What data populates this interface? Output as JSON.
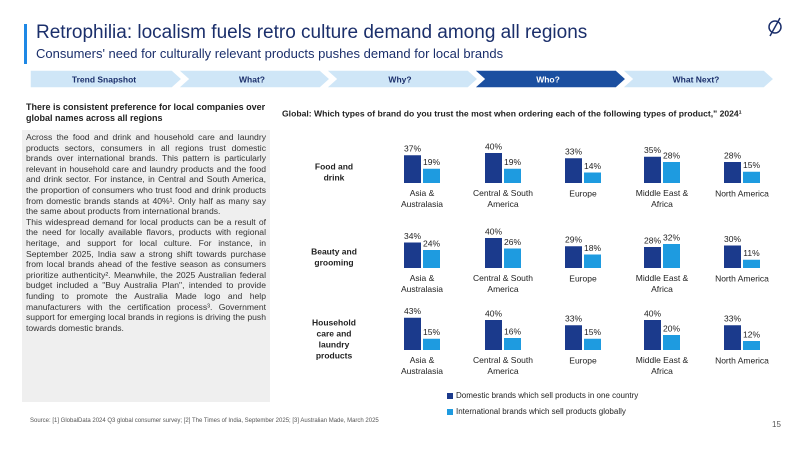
{
  "header": {
    "title": "Retrophilia: localism fuels retro culture demand among all regions",
    "subtitle": "Consumers' need for culturally relevant products pushes demand for local brands"
  },
  "nav": {
    "items": [
      "Trend Snapshot",
      "What?",
      "Why?",
      "Who?",
      "What Next?"
    ],
    "active": 3
  },
  "panel": {
    "heading": "There is consistent preference for local companies over global names across all regions",
    "paragraphs": [
      "Across the food and drink and household care and laundry products sectors, consumers in all regions trust domestic brands over international brands. This pattern is particularly relevant in household care and laundry products and the food and drink sector. For instance, in Central and South America, the proportion of consumers who trust food and drink products from domestic brands stands at 40%¹. Only half as many say the same about products from international brands.",
      "This widespread demand for local products can be a result of the need for locally available flavors, products with regional heritage, and support for local culture. For instance, in September 2025, India saw a strong shift towards purchase from local brands ahead of the festive season as consumers prioritize authenticity². Meanwhile, the 2025 Australian federal budget included a \"Buy Australia Plan\", intended to provide funding to promote the Australia Made logo and help manufacturers with the certification process³. Government support for emerging local brands in regions is driving the push towards domestic brands."
    ]
  },
  "chart_data": {
    "type": "bar",
    "title": "Global: Which types of brand do you trust the most when ordering each of the following types of product,\" 2024¹",
    "groups": [
      "Food and drink",
      "Beauty and grooming",
      "Household care and laundry products"
    ],
    "categories": [
      "Asia & Australasia",
      "Central & South America",
      "Europe",
      "Middle East & Africa",
      "North America"
    ],
    "series": [
      {
        "name": "Domestic brands which sell products in one country",
        "color": "#1b3a8c",
        "values": [
          [
            37,
            40,
            33,
            35,
            28
          ],
          [
            34,
            40,
            29,
            28,
            30
          ],
          [
            43,
            40,
            33,
            40,
            33
          ]
        ],
        "value_labels": [
          [
            "37%",
            "40%",
            "33%",
            "35%",
            "28%"
          ],
          [
            "34%",
            "40%",
            "29%",
            "28%",
            "30%"
          ],
          [
            "43%",
            "40%",
            "33%",
            "40%",
            "33%"
          ]
        ]
      },
      {
        "name": "International brands which sell products globally",
        "color": "#1e9be0",
        "values": [
          [
            19,
            19,
            14,
            28,
            15
          ],
          [
            24,
            26,
            18,
            32,
            11
          ],
          [
            15,
            16,
            15,
            20,
            12
          ]
        ],
        "value_labels": [
          [
            "19%",
            "19%",
            "14%",
            "28%",
            "15%"
          ],
          [
            "24%",
            "26%",
            "18%",
            "32%",
            "11%"
          ],
          [
            "15%",
            "16%",
            "15%",
            "20%",
            "12%"
          ]
        ]
      }
    ]
  },
  "source": "Source: [1] GlobalData 2024 Q3 global consumer survey; [2] The Times of India, September 2025; [3] Australian Made, March 2025",
  "page_number": "15"
}
